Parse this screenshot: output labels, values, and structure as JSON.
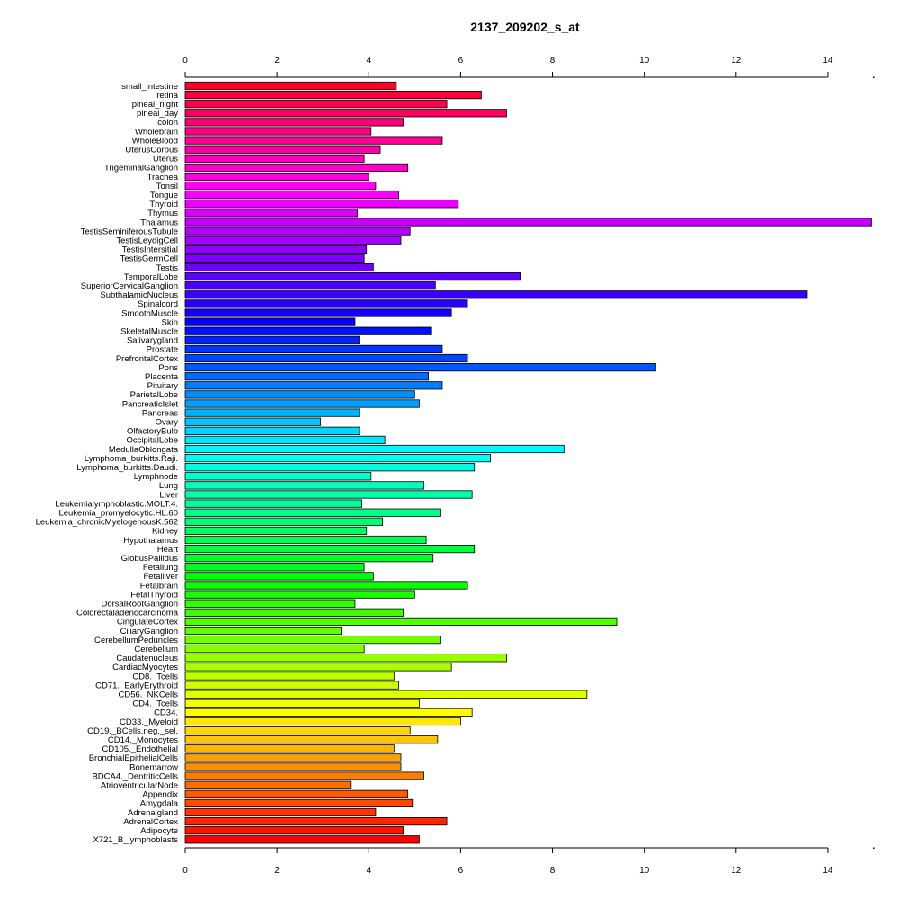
{
  "chart_data": {
    "type": "bar",
    "orientation": "horizontal",
    "title": "2137_209202_s_at",
    "xlabel": "",
    "ylabel": "",
    "xlim": [
      0,
      15
    ],
    "ticks": [
      0,
      2,
      4,
      6,
      8,
      10,
      12,
      14
    ],
    "tick_labels": [
      "0",
      "2",
      "4",
      "6",
      "8",
      "10",
      "12",
      "14"
    ],
    "grid": false,
    "legend": "none",
    "bar_color_scheme": "rainbow",
    "categories": [
      "small_intestine",
      "retina",
      "pineal_night",
      "pineal_day",
      "colon",
      "Wholebrain",
      "WholeBlood",
      "UterusCorpus",
      "Uterus",
      "TrigeminalGanglion",
      "Trachea",
      "Tonsil",
      "Tongue",
      "Thyroid",
      "Thymus",
      "Thalamus",
      "TestisSeminiferousTubule",
      "TestisLeydigCell",
      "TestisIntersitial",
      "TestisGermCell",
      "Testis",
      "TemporalLobe",
      "SuperiorCervicalGanglion",
      "SubthalamicNucleus",
      "Spinalcord",
      "SmoothMuscle",
      "Skin",
      "SkeletalMuscle",
      "Salivarygland",
      "Prostate",
      "PrefrontalCortex",
      "Pons",
      "Placenta",
      "Pituitary",
      "ParietalLobe",
      "PancreaticIslet",
      "Pancreas",
      "Ovary",
      "OlfactoryBulb",
      "OccipitalLobe",
      "MedullaOblongata",
      "Lymphoma_burkitts.Raji.",
      "Lymphoma_burkitts.Daudi.",
      "Lymphnode",
      "Lung",
      "Liver",
      "Leukemialymphoblastic.MOLT.4.",
      "Leukemia_promyelocytic.HL.60",
      "Leukemia_chronicMyelogenousK.562",
      "Kidney",
      "Hypothalamus",
      "Heart",
      "GlobusPallidus",
      "Fetallung",
      "Fetalliver",
      "Fetalbrain",
      "FetalThyroid",
      "DorsalRootGanglion",
      "Colorectaladenocarcinoma",
      "CingulateCortex",
      "CiliaryGanglion",
      "CerebellumPeduncles",
      "Cerebellum",
      "Caudatenucleus",
      "CardiacMyocytes",
      "CD8._Tcells",
      "CD71._EarlyErythroid",
      "CD56._NKCells",
      "CD4._Tcells",
      "CD34.",
      "CD33._Myeloid",
      "CD19._BCells.neg._sel.",
      "CD14._Monocytes",
      "CD105._Endothelial",
      "BronchialEpithelialCells",
      "Bonemarrow",
      "BDCA4._DentriticCells",
      "AtrioventricularNode",
      "Appendix",
      "Amygdala",
      "Adrenalgland",
      "AdrenalCortex",
      "Adipocyte",
      "X721_B_lymphoblasts"
    ],
    "values": [
      4.6,
      6.45,
      5.7,
      7.0,
      4.75,
      4.05,
      5.6,
      4.25,
      3.9,
      4.85,
      4.0,
      4.15,
      4.65,
      5.95,
      3.75,
      14.95,
      4.9,
      4.7,
      3.95,
      3.9,
      4.1,
      7.3,
      5.45,
      13.55,
      6.15,
      5.8,
      3.7,
      5.35,
      3.8,
      5.6,
      6.15,
      10.25,
      5.3,
      5.6,
      5.0,
      5.1,
      3.8,
      2.95,
      3.8,
      4.35,
      8.25,
      6.65,
      6.3,
      4.05,
      5.2,
      6.25,
      3.85,
      5.55,
      4.3,
      3.95,
      5.25,
      6.3,
      5.4,
      3.9,
      4.1,
      6.15,
      5.0,
      3.7,
      4.75,
      9.4,
      3.4,
      5.55,
      3.9,
      7.0,
      5.8,
      4.55,
      4.65,
      8.75,
      5.1,
      6.25,
      6.0,
      4.9,
      5.5,
      4.55,
      4.7,
      4.7,
      5.2,
      3.6,
      4.85,
      4.95,
      4.15,
      5.7,
      4.75,
      5.1
    ]
  }
}
